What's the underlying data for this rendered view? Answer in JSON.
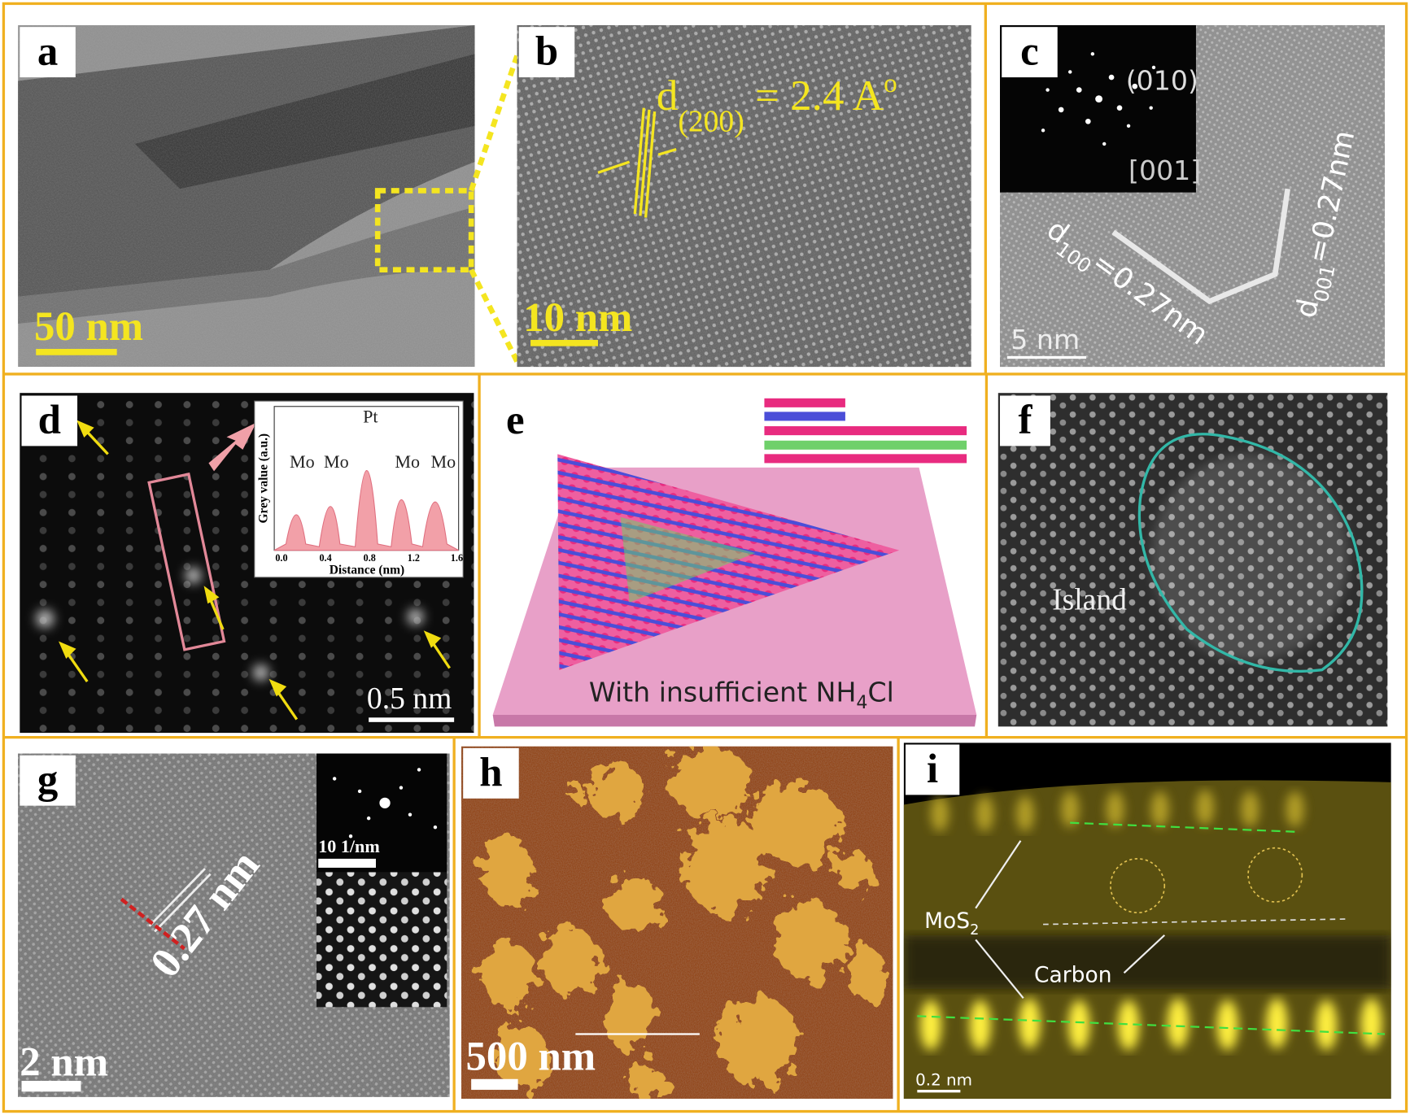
{
  "panels": {
    "a": {
      "label": "a",
      "scale_bar": "50 nm"
    },
    "b": {
      "label": "b",
      "spacing": {
        "symbol": "d",
        "index": "(200)",
        "value": " = 2.4 A",
        "unit_mark": "o"
      },
      "scale_bar": "10 nm"
    },
    "c": {
      "label": "c",
      "fft_spot": "(010)",
      "zone_axis": "[001]",
      "spacing_1": {
        "symbol": "d",
        "index": "100",
        "value": "=0.27nm"
      },
      "spacing_2": {
        "symbol": "d",
        "index": "001",
        "value": "=0.27nm"
      },
      "scale_bar": "5 nm"
    },
    "d": {
      "label": "d",
      "inset": {
        "y_label": "Grey value (a.u.)",
        "x_label": "Distance (nm)",
        "peaks": [
          "Mo",
          "Mo",
          "Pt",
          "Mo",
          "Mo"
        ],
        "xticks": [
          "0.0",
          "0.4",
          "0.8",
          "1.2",
          "1.6"
        ]
      },
      "scale_bar": "0.5 nm"
    },
    "e": {
      "label": "e",
      "caption": {
        "text": "With insufficient NH",
        "sub": "4",
        "tail": "Cl"
      }
    },
    "f": {
      "label": "f",
      "annotation": "Island"
    },
    "g": {
      "label": "g",
      "spacing": "0.27 nm",
      "inset_scale": "10  1/nm",
      "scale_bar": "2 nm"
    },
    "h": {
      "label": "h",
      "scale_bar": "500 nm"
    },
    "i": {
      "label": "i",
      "layer_1": {
        "text": "MoS",
        "sub": "2"
      },
      "layer_2": "Carbon",
      "scale_bar": "0.2 nm"
    }
  }
}
